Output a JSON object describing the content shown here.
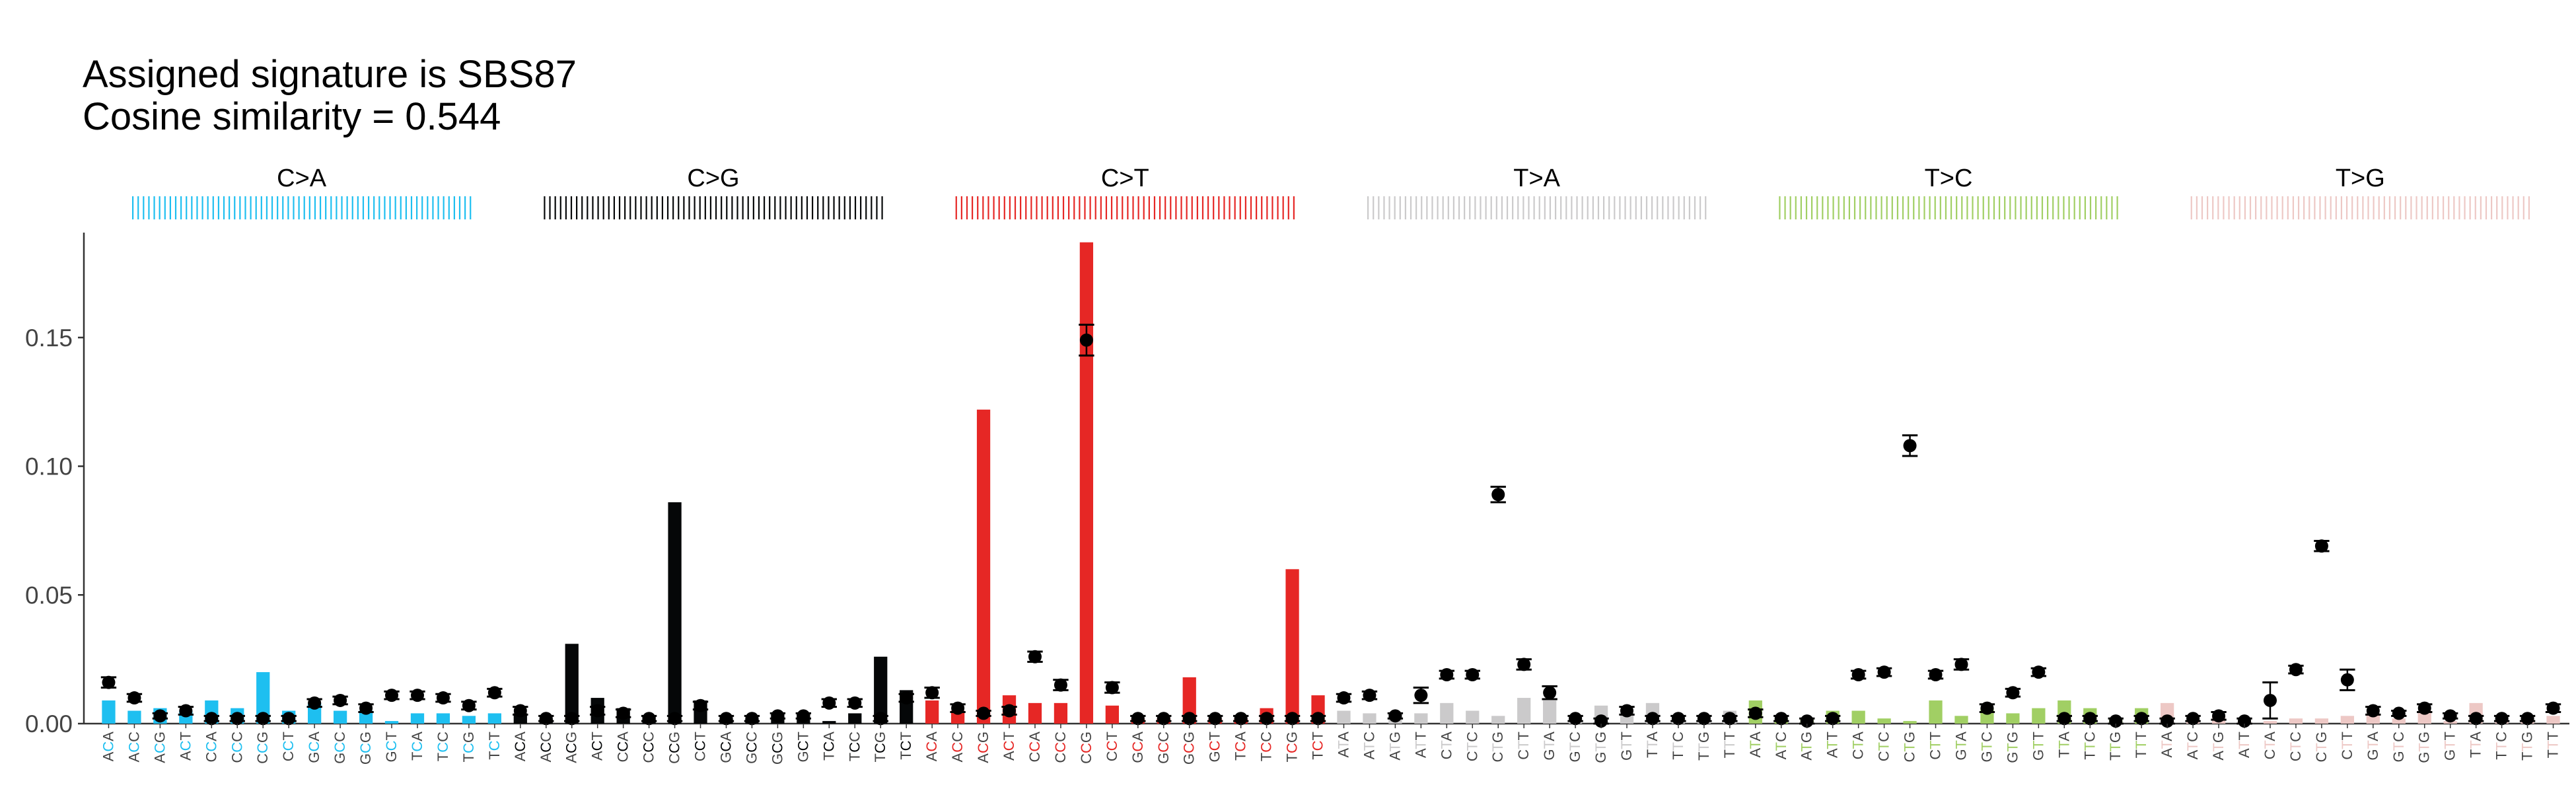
{
  "title_lines": [
    "Assigned signature is SBS87",
    "Cosine similarity = 0.544"
  ],
  "colors": {
    "C>A": "#1ebff0",
    "C>G": "#050708",
    "C>T": "#e62725",
    "T>A": "#cbcacb",
    "T>C": "#a1cf64",
    "T>G": "#edc8c5",
    "axis": "#333333",
    "error": "#000000"
  },
  "chart_data": {
    "type": "bar",
    "title": "Assigned signature is SBS87 / Cosine similarity = 0.544",
    "xlabel": "",
    "ylabel": "",
    "ylim": [
      0,
      0.19
    ],
    "yticks": [
      0.0,
      0.05,
      0.1,
      0.15
    ],
    "ytick_labels": [
      "0.00",
      "0.05",
      "0.10",
      "0.15"
    ],
    "grid": false,
    "legend": "none",
    "panels": [
      {
        "label": "C>A",
        "categories": [
          "ACA",
          "ACC",
          "ACG",
          "ACT",
          "CCA",
          "CCC",
          "CCG",
          "CCT",
          "GCA",
          "GCC",
          "GCG",
          "GCT",
          "TCA",
          "TCC",
          "TCG",
          "TCT"
        ],
        "values": [
          0.009,
          0.005,
          0.006,
          0.005,
          0.009,
          0.006,
          0.02,
          0.005,
          0.008,
          0.005,
          0.005,
          0.001,
          0.004,
          0.004,
          0.003,
          0.004
        ],
        "signature": [
          0.016,
          0.01,
          0.003,
          0.005,
          0.002,
          0.002,
          0.002,
          0.002,
          0.008,
          0.009,
          0.006,
          0.011,
          0.011,
          0.01,
          0.007,
          0.012
        ],
        "error": [
          0.002,
          0.0015,
          0.001,
          0.0015,
          0.001,
          0.001,
          0.001,
          0.001,
          0.0015,
          0.0015,
          0.0015,
          0.0015,
          0.0015,
          0.0015,
          0.0015,
          0.0015
        ]
      },
      {
        "label": "C>G",
        "categories": [
          "ACA",
          "ACC",
          "ACG",
          "ACT",
          "CCA",
          "CCC",
          "CCG",
          "CCT",
          "GCA",
          "GCC",
          "GCG",
          "GCT",
          "TCA",
          "TCC",
          "TCG",
          "TCT"
        ],
        "values": [
          0.004,
          0.002,
          0.031,
          0.01,
          0.006,
          0.003,
          0.086,
          0.009,
          0.002,
          0.002,
          0.004,
          0.004,
          0.001,
          0.004,
          0.026,
          0.013
        ],
        "signature": [
          0.005,
          0.002,
          0.002,
          0.005,
          0.004,
          0.002,
          0.002,
          0.007,
          0.002,
          0.002,
          0.003,
          0.003,
          0.008,
          0.008,
          0.002,
          0.01
        ],
        "error": [
          0.0015,
          0.001,
          0.001,
          0.0015,
          0.0015,
          0.001,
          0.001,
          0.0015,
          0.001,
          0.001,
          0.001,
          0.001,
          0.0015,
          0.0015,
          0.001,
          0.0015
        ]
      },
      {
        "label": "C>T",
        "categories": [
          "ACA",
          "ACC",
          "ACG",
          "ACT",
          "CCA",
          "CCC",
          "CCG",
          "CCT",
          "GCA",
          "GCC",
          "GCG",
          "GCT",
          "TCA",
          "TCC",
          "TCG",
          "TCT"
        ],
        "values": [
          0.009,
          0.005,
          0.122,
          0.011,
          0.008,
          0.008,
          0.187,
          0.007,
          0.002,
          0.002,
          0.018,
          0.002,
          0.002,
          0.006,
          0.06,
          0.011
        ],
        "signature": [
          0.012,
          0.006,
          0.004,
          0.005,
          0.026,
          0.015,
          0.149,
          0.014,
          0.002,
          0.002,
          0.002,
          0.002,
          0.002,
          0.002,
          0.002,
          0.002
        ],
        "error": [
          0.002,
          0.0015,
          0.001,
          0.0015,
          0.002,
          0.002,
          0.006,
          0.002,
          0.001,
          0.001,
          0.001,
          0.001,
          0.001,
          0.001,
          0.001,
          0.001
        ]
      },
      {
        "label": "T>A",
        "categories": [
          "ATA",
          "ATC",
          "ATG",
          "ATT",
          "CTA",
          "CTC",
          "CTG",
          "CTT",
          "GTA",
          "GTC",
          "GTG",
          "GTT",
          "TTA",
          "TTC",
          "TTG",
          "TTT"
        ],
        "values": [
          0.005,
          0.004,
          0.004,
          0.004,
          0.008,
          0.005,
          0.003,
          0.01,
          0.009,
          0.002,
          0.007,
          0.004,
          0.008,
          0.002,
          0.002,
          0.005
        ],
        "signature": [
          0.01,
          0.011,
          0.003,
          0.011,
          0.019,
          0.019,
          0.089,
          0.023,
          0.012,
          0.002,
          0.001,
          0.005,
          0.002,
          0.002,
          0.002,
          0.002
        ],
        "error": [
          0.0015,
          0.0015,
          0.001,
          0.003,
          0.0015,
          0.0015,
          0.003,
          0.002,
          0.0025,
          0.001,
          0.001,
          0.0015,
          0.001,
          0.001,
          0.001,
          0.001
        ]
      },
      {
        "label": "T>C",
        "categories": [
          "ATA",
          "ATC",
          "ATG",
          "ATT",
          "CTA",
          "CTC",
          "CTG",
          "CTT",
          "GTA",
          "GTC",
          "GTG",
          "GTT",
          "TTA",
          "TTC",
          "TTG",
          "TTT"
        ],
        "values": [
          0.009,
          0.002,
          0.002,
          0.005,
          0.005,
          0.002,
          0.001,
          0.009,
          0.003,
          0.006,
          0.004,
          0.006,
          0.009,
          0.006,
          0.002,
          0.006
        ],
        "signature": [
          0.004,
          0.002,
          0.001,
          0.002,
          0.019,
          0.02,
          0.108,
          0.019,
          0.023,
          0.006,
          0.012,
          0.02,
          0.002,
          0.002,
          0.001,
          0.002
        ],
        "error": [
          0.0015,
          0.001,
          0.001,
          0.001,
          0.0015,
          0.0015,
          0.004,
          0.0015,
          0.002,
          0.0015,
          0.0015,
          0.0015,
          0.001,
          0.001,
          0.001,
          0.001
        ]
      },
      {
        "label": "T>G",
        "categories": [
          "ATA",
          "ATC",
          "ATG",
          "ATT",
          "CTA",
          "CTC",
          "CTG",
          "CTT",
          "GTA",
          "GTC",
          "GTG",
          "GTT",
          "TTA",
          "TTC",
          "TTG",
          "TTT"
        ],
        "values": [
          0.008,
          0.001,
          0.003,
          0.001,
          0.001,
          0.002,
          0.002,
          0.003,
          0.004,
          0.002,
          0.005,
          0.001,
          0.008,
          0.001,
          0.001,
          0.003
        ],
        "signature": [
          0.001,
          0.002,
          0.003,
          0.001,
          0.009,
          0.021,
          0.069,
          0.017,
          0.005,
          0.004,
          0.006,
          0.003,
          0.002,
          0.002,
          0.002,
          0.006
        ],
        "error": [
          0.001,
          0.001,
          0.0015,
          0.001,
          0.007,
          0.0015,
          0.002,
          0.004,
          0.0015,
          0.001,
          0.0015,
          0.001,
          0.001,
          0.001,
          0.001,
          0.0015
        ]
      }
    ]
  }
}
